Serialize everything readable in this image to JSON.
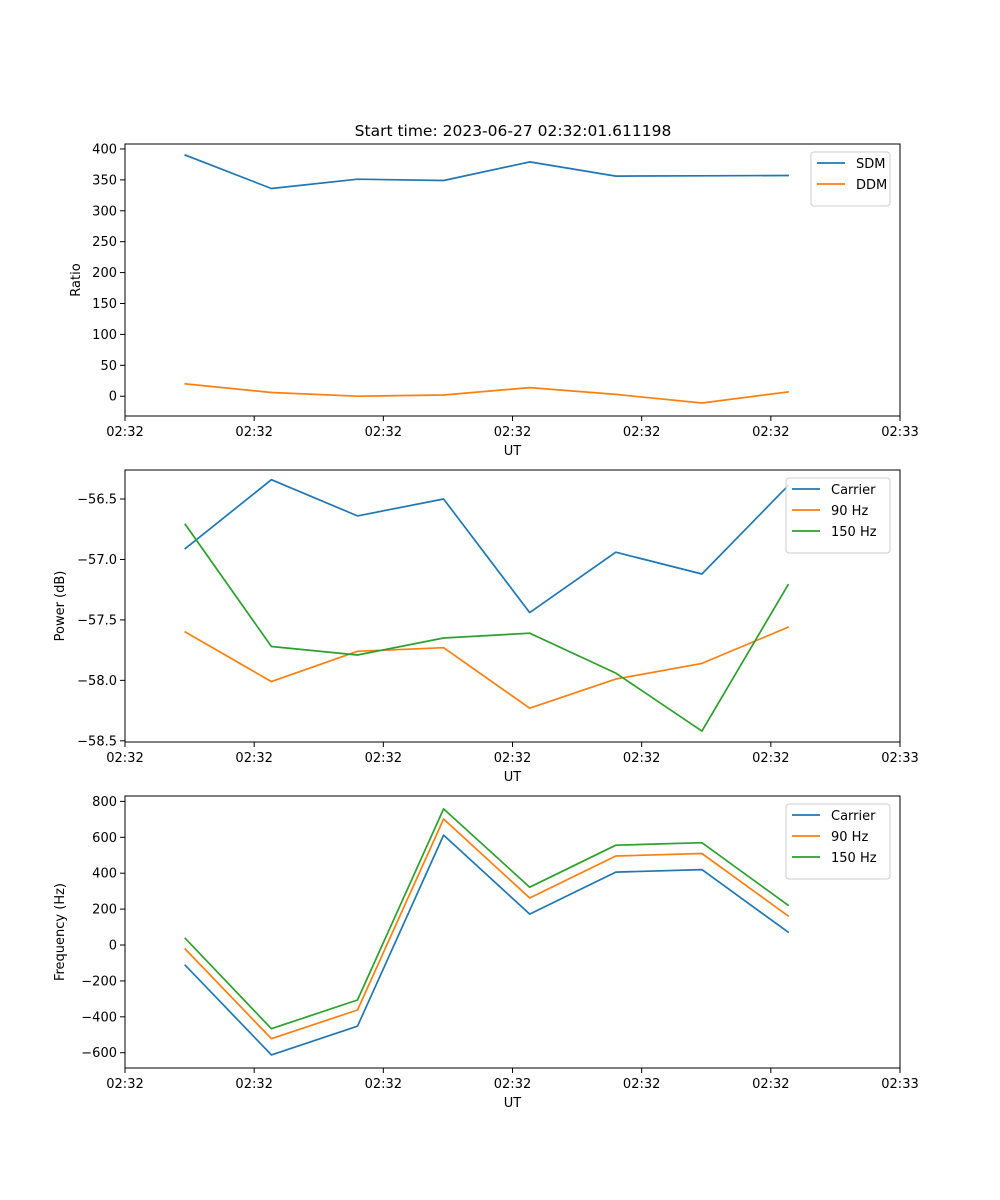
{
  "figure": {
    "title": "Start time: 2023-06-27 02:32:01.611198"
  },
  "colors": {
    "blue": "#1f77b4",
    "orange": "#ff7f0e",
    "green": "#2ca02c"
  },
  "chart_data": [
    {
      "type": "line",
      "title": "",
      "xlabel": "UT",
      "ylabel": "Ratio",
      "xlim": [
        0,
        9
      ],
      "ylim": [
        -32,
        408
      ],
      "x_ticks": [
        0,
        1.5,
        3,
        4.5,
        6,
        7.5,
        9
      ],
      "x_tick_labels": [
        "02:32",
        "02:32",
        "02:32",
        "02:32",
        "02:32",
        "02:32",
        "02:33"
      ],
      "y_ticks": [
        0,
        50,
        100,
        150,
        200,
        250,
        300,
        350,
        400
      ],
      "y_tick_labels": [
        "0",
        "50",
        "100",
        "150",
        "200",
        "250",
        "300",
        "350",
        "400"
      ],
      "legend_position": "top-right",
      "x": [
        0.7,
        1.7,
        2.7,
        3.7,
        4.7,
        5.7,
        6.7,
        7.7
      ],
      "series": [
        {
          "name": "SDM",
          "color": "#1f77b4",
          "values": [
            390,
            336,
            351,
            349,
            379,
            356,
            356.5,
            357
          ]
        },
        {
          "name": "DDM",
          "color": "#ff7f0e",
          "values": [
            20,
            6,
            0,
            2,
            14,
            3,
            -11,
            7
          ]
        }
      ]
    },
    {
      "type": "line",
      "title": "",
      "xlabel": "UT",
      "ylabel": "Power (dB)",
      "xlim": [
        0,
        9
      ],
      "ylim": [
        -58.51,
        -56.26
      ],
      "x_ticks": [
        0,
        1.5,
        3,
        4.5,
        6,
        7.5,
        9
      ],
      "x_tick_labels": [
        "02:32",
        "02:32",
        "02:32",
        "02:32",
        "02:32",
        "02:32",
        "02:33"
      ],
      "y_ticks": [
        -58.5,
        -58.0,
        -57.5,
        -57.0,
        -56.5
      ],
      "y_tick_labels": [
        "−58.5",
        "−58.0",
        "−57.5",
        "−57.0",
        "−56.5"
      ],
      "legend_position": "top-right",
      "x": [
        0.7,
        1.7,
        2.7,
        3.7,
        4.7,
        5.7,
        6.7,
        7.7
      ],
      "series": [
        {
          "name": "Carrier",
          "color": "#1f77b4",
          "values": [
            -56.91,
            -56.34,
            -56.64,
            -56.5,
            -57.44,
            -56.94,
            -57.12,
            -56.39
          ]
        },
        {
          "name": "90 Hz",
          "color": "#ff7f0e",
          "values": [
            -57.6,
            -58.01,
            -57.76,
            -57.73,
            -58.23,
            -57.99,
            -57.86,
            -57.56
          ]
        },
        {
          "name": "150 Hz",
          "color": "#2ca02c",
          "values": [
            -56.71,
            -57.72,
            -57.79,
            -57.65,
            -57.61,
            -57.94,
            -58.42,
            -57.21
          ]
        }
      ]
    },
    {
      "type": "line",
      "title": "",
      "xlabel": "UT",
      "ylabel": "Frequency (Hz)",
      "xlim": [
        0,
        9
      ],
      "ylim": [
        -685,
        830
      ],
      "x_ticks": [
        0,
        1.5,
        3,
        4.5,
        6,
        7.5,
        9
      ],
      "x_tick_labels": [
        "02:32",
        "02:32",
        "02:32",
        "02:32",
        "02:32",
        "02:32",
        "02:33"
      ],
      "y_ticks": [
        -600,
        -400,
        -200,
        0,
        200,
        400,
        600,
        800
      ],
      "y_tick_labels": [
        "−600",
        "−400",
        "−200",
        "0",
        "200",
        "400",
        "600",
        "800"
      ],
      "legend_position": "top-right",
      "x": [
        0.7,
        1.7,
        2.7,
        3.7,
        4.7,
        5.7,
        6.7,
        7.7
      ],
      "series": [
        {
          "name": "Carrier",
          "color": "#1f77b4",
          "values": [
            -113,
            -612,
            -452,
            612,
            172,
            406,
            420,
            72
          ]
        },
        {
          "name": "90 Hz",
          "color": "#ff7f0e",
          "values": [
            -23,
            -522,
            -362,
            702,
            262,
            496,
            510,
            162
          ]
        },
        {
          "name": "150 Hz",
          "color": "#2ca02c",
          "values": [
            37,
            -466,
            -306,
            758,
            322,
            556,
            570,
            222
          ]
        }
      ]
    }
  ]
}
